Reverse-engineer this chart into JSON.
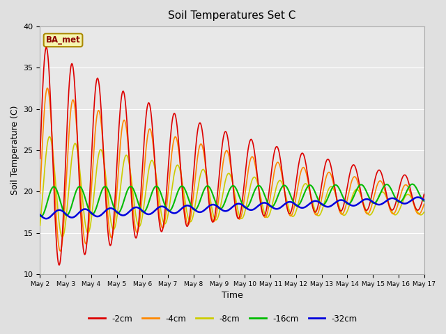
{
  "title": "Soil Temperatures Set C",
  "xlabel": "Time",
  "ylabel": "Soil Temperature (C)",
  "ylim": [
    10,
    40
  ],
  "xlim": [
    0,
    360
  ],
  "annotation": "BA_met",
  "fig_bg": "#e0e0e0",
  "plot_bg": "#e8e8e8",
  "series": {
    "-2cm": {
      "color": "#dd0000",
      "lw": 1.2
    },
    "-4cm": {
      "color": "#ff8800",
      "lw": 1.2
    },
    "-8cm": {
      "color": "#cccc00",
      "lw": 1.2
    },
    "-16cm": {
      "color": "#00bb00",
      "lw": 1.5
    },
    "-32cm": {
      "color": "#0000dd",
      "lw": 1.8
    }
  },
  "tick_labels": [
    "May 2",
    "May 3",
    "May 4",
    "May 5",
    "May 6",
    "May 7",
    "May 8",
    "May 9",
    "May 10",
    "May 11",
    "May 12",
    "May 13",
    "May 14",
    "May 15",
    "May 16",
    "May 17"
  ],
  "tick_positions": [
    0,
    24,
    48,
    72,
    96,
    120,
    144,
    168,
    192,
    216,
    240,
    264,
    288,
    312,
    336,
    360
  ],
  "yticks": [
    10,
    15,
    20,
    25,
    30,
    35,
    40
  ],
  "hours": 360,
  "n_points": 721
}
